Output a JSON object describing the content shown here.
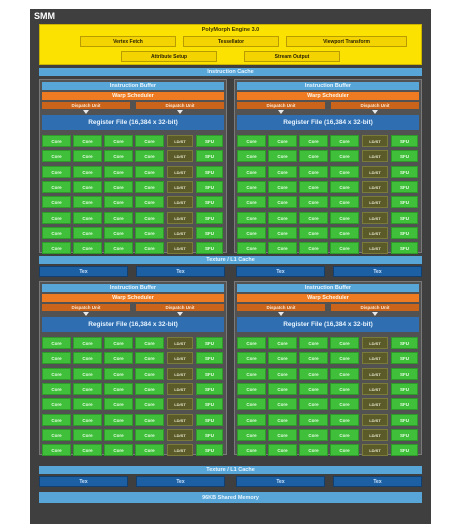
{
  "smm_title": "SMM",
  "polymorph": {
    "title": "PolyMorph Engine 3.0",
    "row1": [
      "Vertex Fetch",
      "Tessellator",
      "Viewport Transform"
    ],
    "row2": [
      "Attribute Setup",
      "Stream Output"
    ]
  },
  "instruction_cache": "Instruction Cache",
  "block": {
    "instruction_buffer": "Instruction Buffer",
    "warp_scheduler": "Warp Scheduler",
    "dispatch_unit": "Dispatch Unit",
    "register_file": "Register File (16,384 x 32-bit)",
    "core": "Core",
    "ldst": "LD/ST",
    "sfu": "SFU"
  },
  "texture_cache": "Texture / L1 Cache",
  "tex": "Tex",
  "shared_memory": "96KB Shared Memory",
  "colors": {
    "frame": "#3f3f3f",
    "polymorph": "#fbe200",
    "cache": "#58a6d8",
    "warp": "#ee7b22",
    "register": "#2f6fb1",
    "core": "#3fbf3a",
    "ldst": "#5b5b2a",
    "tex": "#1c5fa3"
  }
}
